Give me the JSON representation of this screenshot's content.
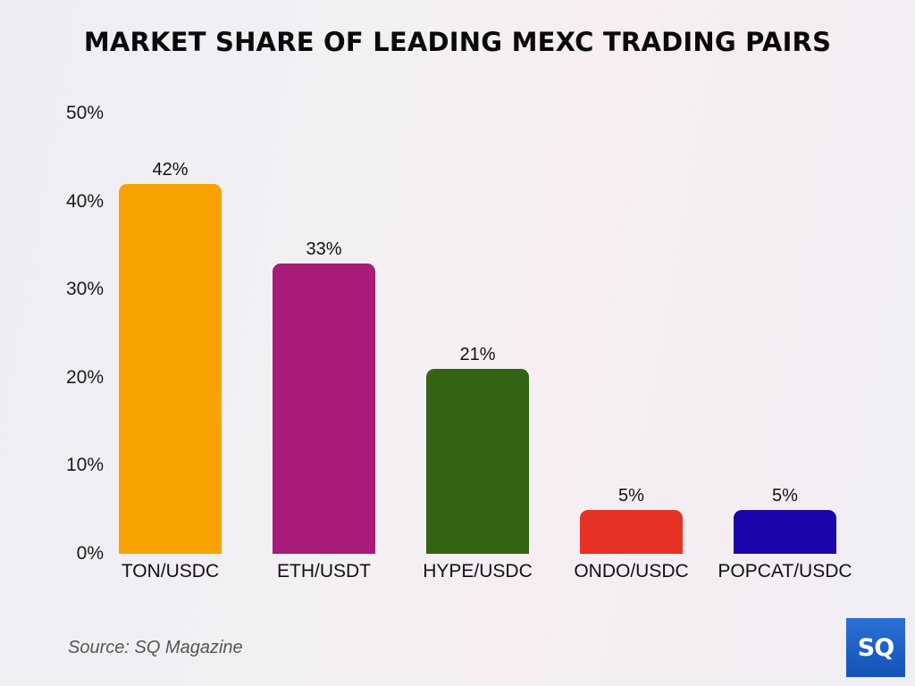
{
  "title": "MARKET SHARE OF LEADING MEXC TRADING PAIRS",
  "source": "Source: SQ Magazine",
  "logo": {
    "text": "SQ",
    "icon": "sq-magazine-logo"
  },
  "y_ticks": [
    "0%",
    "10%",
    "20%",
    "30%",
    "40%",
    "50%"
  ],
  "bars": [
    {
      "label": "TON/USDC",
      "value": 42,
      "value_label": "42%",
      "color": "#f9a300"
    },
    {
      "label": "ETH/USDT",
      "value": 33,
      "value_label": "33%",
      "color": "#a91b78"
    },
    {
      "label": "HYPE/USDC",
      "value": 21,
      "value_label": "21%",
      "color": "#336414"
    },
    {
      "label": "ONDO/USDC",
      "value": 5,
      "value_label": "5%",
      "color": "#e53224"
    },
    {
      "label": "POPCAT/USDC",
      "value": 5,
      "value_label": "5%",
      "color": "#1a04aa"
    }
  ],
  "chart_data": {
    "type": "bar",
    "title": "MARKET SHARE OF LEADING MEXC TRADING PAIRS",
    "categories": [
      "TON/USDC",
      "ETH/USDT",
      "HYPE/USDC",
      "ONDO/USDC",
      "POPCAT/USDC"
    ],
    "values": [
      42,
      33,
      21,
      5,
      5
    ],
    "data_labels": [
      "42%",
      "33%",
      "21%",
      "5%",
      "5%"
    ],
    "colors": [
      "#f9a300",
      "#a91b78",
      "#336414",
      "#e53224",
      "#1a04aa"
    ],
    "xlabel": "",
    "ylabel": "",
    "ylim": [
      0,
      50
    ],
    "y_ticks": [
      "0%",
      "10%",
      "20%",
      "30%",
      "40%",
      "50%"
    ],
    "grid": false,
    "legend": "none",
    "annotations": [
      "Source: SQ Magazine"
    ]
  }
}
